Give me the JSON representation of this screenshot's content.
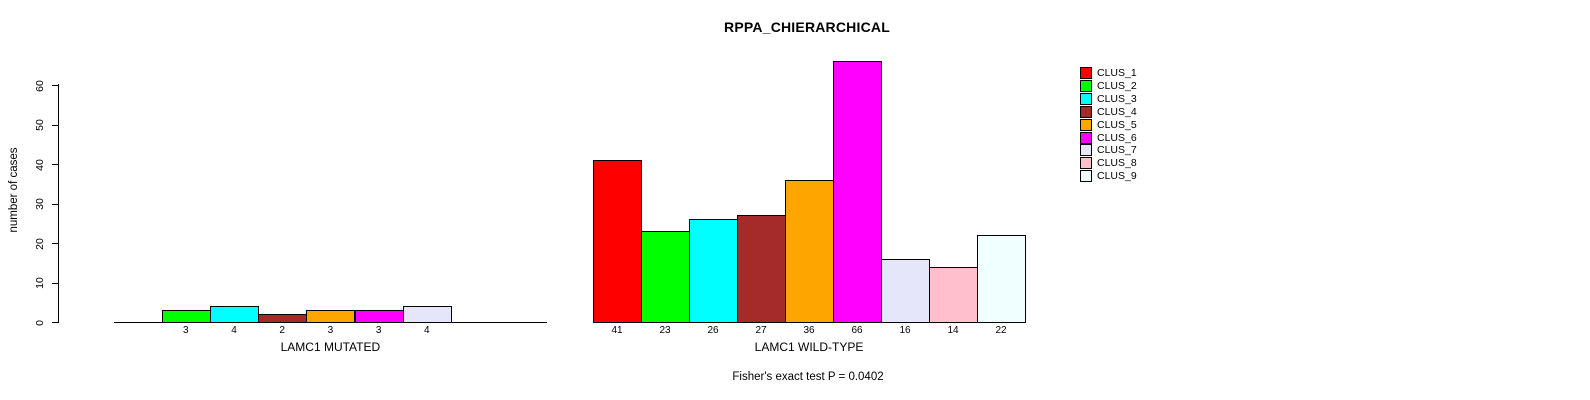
{
  "chart_data": {
    "type": "bar",
    "title": "RPPA_CHIERARCHICAL",
    "ylabel": "number of cases",
    "ylim": [
      0,
      66
    ],
    "yticks": [
      0,
      10,
      20,
      30,
      40,
      50,
      60
    ],
    "grid": false,
    "legend_position": "right",
    "clusters": [
      {
        "label": "CLUS_1",
        "color": "#FF0000"
      },
      {
        "label": "CLUS_2",
        "color": "#00FF00"
      },
      {
        "label": "CLUS_3",
        "color": "#00FFFF"
      },
      {
        "label": "CLUS_4",
        "color": "#A52A2A"
      },
      {
        "label": "CLUS_5",
        "color": "#FFA500"
      },
      {
        "label": "CLUS_6",
        "color": "#FF00FF"
      },
      {
        "label": "CLUS_7",
        "color": "#E6E6FA"
      },
      {
        "label": "CLUS_8",
        "color": "#FFC0CB"
      },
      {
        "label": "CLUS_9",
        "color": "#F0FFFF"
      }
    ],
    "groups": [
      {
        "label": "LAMC1 MUTATED",
        "values": [
          0,
          3,
          4,
          2,
          3,
          3,
          4,
          0,
          0
        ]
      },
      {
        "label": "LAMC1 WILD-TYPE",
        "values": [
          41,
          23,
          26,
          27,
          36,
          66,
          16,
          14,
          22
        ]
      }
    ],
    "zero_bars_hidden": true,
    "annotation": "Fisher's exact test P = 0.0402"
  }
}
